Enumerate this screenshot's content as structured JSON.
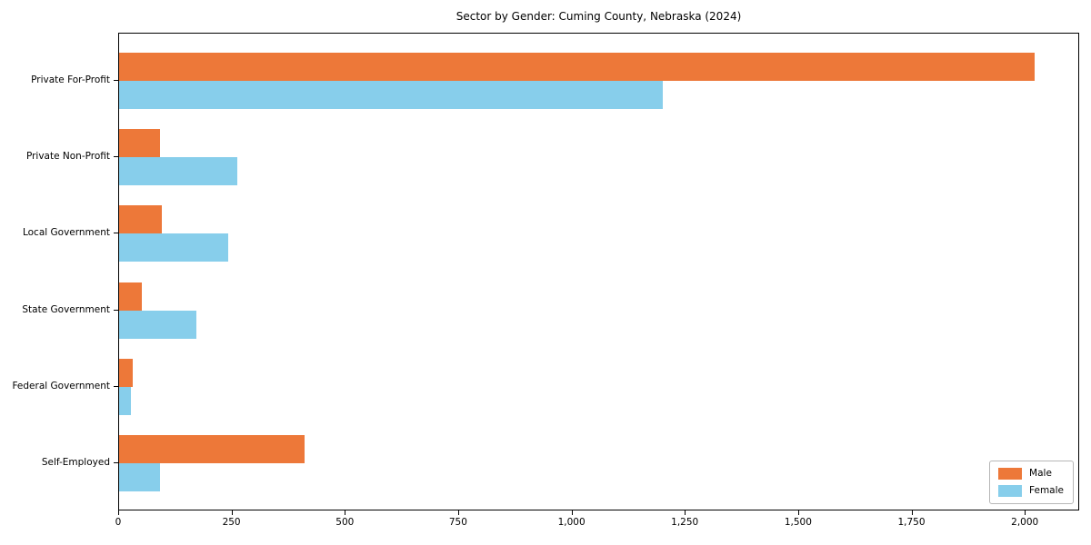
{
  "chart_data": {
    "type": "bar",
    "orientation": "horizontal",
    "title": "Sector by Gender: Cuming County, Nebraska (2024)",
    "categories": [
      "Private For-Profit",
      "Private Non-Profit",
      "Local Government",
      "State Government",
      "Federal Government",
      "Self-Employed"
    ],
    "series": [
      {
        "name": "Male",
        "color": "#ED7839",
        "values": [
          2020,
          90,
          95,
          50,
          30,
          410
        ]
      },
      {
        "name": "Female",
        "color": "#87CEEB",
        "values": [
          1200,
          260,
          240,
          170,
          25,
          90
        ]
      }
    ],
    "xlabel": "",
    "ylabel": "",
    "xlim": [
      0,
      2120
    ],
    "x_ticks": [
      0,
      250,
      500,
      750,
      1000,
      1250,
      1500,
      1750,
      2000
    ],
    "x_tick_labels": [
      "0",
      "250",
      "500",
      "750",
      "1,000",
      "1,250",
      "1,500",
      "1,750",
      "2,000"
    ],
    "grid": false,
    "legend_position": "lower right"
  }
}
